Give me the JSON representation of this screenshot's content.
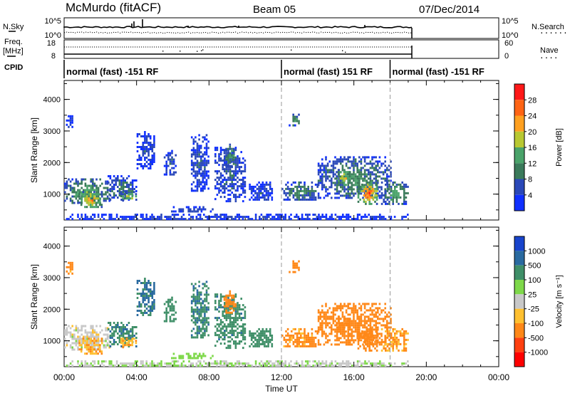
{
  "header": {
    "station": "McMurdo (fitACF)",
    "beam": "Beam 05",
    "date": "07/Dec/2014"
  },
  "side_labels": {
    "nsky": "N.Sky",
    "freq_top": "Freq.",
    "freq_unit": "[MHz]",
    "cpid": "CPID",
    "nsearch": "N.Search",
    "nave": "Nave"
  },
  "chart_data": [
    {
      "type": "line",
      "name": "N.Sky / N.Search",
      "y_ticks_left": [
        "10^5",
        "10^0"
      ],
      "y_ticks_right": [
        "10^5",
        "10^0"
      ],
      "data_end_hour": 19.2
    },
    {
      "type": "line",
      "name": "Freq / Nave",
      "y_ticks_left": [
        "18",
        "8"
      ],
      "y_ticks_right": [
        "60",
        "0"
      ]
    },
    {
      "type": "table",
      "name": "CPID",
      "segments": [
        {
          "start_hour": 0,
          "end_hour": 12,
          "label": "normal (fast) -151 RF"
        },
        {
          "start_hour": 12,
          "end_hour": 18,
          "label": "normal (fast) 151 RF"
        },
        {
          "start_hour": 18,
          "end_hour": 24,
          "label": "normal (fast) -151 RF"
        }
      ]
    },
    {
      "type": "heatmap",
      "name": "Power",
      "ylabel": "Slant Range [km]",
      "y_ticks": [
        1000,
        2000,
        3000,
        4000
      ],
      "ylim": [
        180,
        4600
      ],
      "colorbar_label": "Power [dB]",
      "colorbar_ticks": [
        "4",
        "8",
        "12",
        "16",
        "20",
        "24",
        "28"
      ],
      "colorbar_colors": [
        "#1030ff",
        "#2a48b8",
        "#3a7a5a",
        "#4aa36a",
        "#b8c832",
        "#ffa020",
        "#ff6414",
        "#ff1818"
      ]
    },
    {
      "type": "heatmap",
      "name": "Velocity",
      "ylabel": "Slant Range [km]",
      "y_ticks": [
        1000,
        2000,
        3000,
        4000
      ],
      "ylim": [
        180,
        4600
      ],
      "colorbar_label": "Velocity [m s⁻¹]",
      "colorbar_ticks": [
        "1000",
        "500",
        "100",
        "25",
        "-25",
        "-100",
        "-500",
        "-1000"
      ],
      "colorbar_colors": [
        "#1844cc",
        "#2a6aa0",
        "#3f8f68",
        "#7ed84a",
        "#c8c8c8",
        "#ffc030",
        "#ff8818",
        "#ff4010",
        "#ff0000"
      ]
    }
  ],
  "time_axis": {
    "xlabel": "Time UT",
    "ticks": [
      "00:00",
      "04:00",
      "08:00",
      "12:00",
      "16:00",
      "20:00",
      "00:00"
    ],
    "xlim_hours": [
      0,
      24
    ]
  },
  "echo_regions": [
    {
      "t0": 0.0,
      "t1": 2.5,
      "r0": 700,
      "r1": 1500,
      "p": 16,
      "v": 0
    },
    {
      "t0": 0.8,
      "t1": 2.1,
      "r0": 600,
      "r1": 1100,
      "p": 24,
      "v": -100
    },
    {
      "t0": 0.1,
      "t1": 0.5,
      "r0": 3100,
      "r1": 3500,
      "p": 6,
      "v": -150
    },
    {
      "t0": 2.4,
      "t1": 4.0,
      "r0": 800,
      "r1": 1600,
      "p": 10,
      "v": 400
    },
    {
      "t0": 3.1,
      "t1": 4.0,
      "r0": 800,
      "r1": 1100,
      "p": 20,
      "v": -80
    },
    {
      "t0": 4.0,
      "t1": 5.0,
      "r0": 1800,
      "r1": 3000,
      "p": 6,
      "v": 600
    },
    {
      "t0": 5.5,
      "t1": 6.2,
      "r0": 1600,
      "r1": 2400,
      "p": 8,
      "v": 300
    },
    {
      "t0": 5.8,
      "t1": 8.2,
      "r0": 420,
      "r1": 620,
      "p": 6,
      "v": 60
    },
    {
      "t0": 7.0,
      "t1": 8.0,
      "r0": 1100,
      "r1": 2900,
      "p": 7,
      "v": 400
    },
    {
      "t0": 8.3,
      "t1": 10.0,
      "r0": 800,
      "r1": 2500,
      "p": 8,
      "v": 350
    },
    {
      "t0": 8.8,
      "t1": 9.5,
      "r0": 1900,
      "r1": 2600,
      "p": 14,
      "v": -200
    },
    {
      "t0": 10.2,
      "t1": 11.5,
      "r0": 800,
      "r1": 1400,
      "p": 6,
      "v": 300
    },
    {
      "t0": 12.0,
      "t1": 14.0,
      "r0": 800,
      "r1": 1400,
      "p": 12,
      "v": -150
    },
    {
      "t0": 12.4,
      "t1": 13.0,
      "r0": 3200,
      "r1": 3550,
      "p": 14,
      "v": -200
    },
    {
      "t0": 14.0,
      "t1": 18.0,
      "r0": 850,
      "r1": 2200,
      "p": 12,
      "v": -250
    },
    {
      "t0": 16.2,
      "t1": 17.3,
      "r0": 700,
      "r1": 1400,
      "p": 28,
      "v": -300
    },
    {
      "t0": 15.0,
      "t1": 15.8,
      "r0": 1300,
      "r1": 1800,
      "p": 22,
      "v": -200
    },
    {
      "t0": 17.5,
      "t1": 19.0,
      "r0": 700,
      "r1": 1400,
      "p": 16,
      "v": -100
    },
    {
      "t0": 0.0,
      "t1": 19.0,
      "r0": 180,
      "r1": 380,
      "p": 5,
      "v": 20
    }
  ]
}
